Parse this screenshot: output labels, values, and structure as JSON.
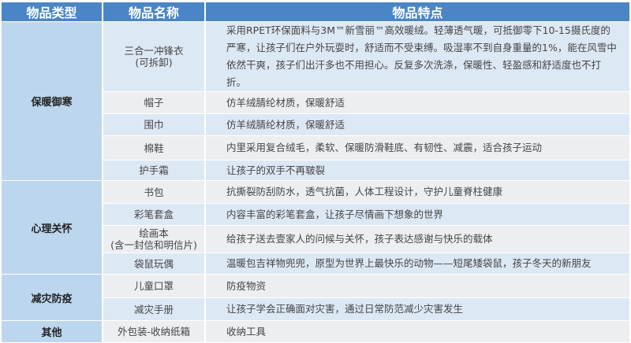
{
  "headers": [
    "物品类型",
    "物品名称",
    "物品特点"
  ],
  "colors": {
    "header": "#4a86c5",
    "category": "#bcd6ee",
    "row_blue": "#dde8f5",
    "row_gray": "#eceef1"
  },
  "categories": [
    "保暖御寒",
    "心理关怀",
    "减灾防疫",
    "其他"
  ],
  "rows": [
    {
      "name": "三合一冲锋衣",
      "name2": "(可拆卸)",
      "desc": "采用RPET环保面料与3M™新雪丽™高效暖绒。轻薄透气暖，可抵御零下10-15摄氏度的严寒，让孩子们在户外玩耍时，舒适而不受束缚。吸湿率不到自身重量的1%，能在风雪中依然干爽，孩子们出汗多也不用担心。反复多次洗涤，保暖性、轻盈感和舒适度也不打折。"
    },
    {
      "name": "帽子",
      "desc": "仿羊绒腈纶材质，保暖舒适"
    },
    {
      "name": "围巾",
      "desc": "仿羊绒腈纶材质，保暖舒适"
    },
    {
      "name": "棉鞋",
      "desc": "内里采用复合绒毛，柔软、保暖防滑鞋底、有韧性、减震，适合孩子运动"
    },
    {
      "name": "护手霜",
      "desc": "让孩子的双手不再皲裂"
    },
    {
      "name": "书包",
      "desc": "抗撕裂防刮防水，透气抗菌，人体工程设计，守护儿童脊柱健康"
    },
    {
      "name": "彩笔套盒",
      "desc": "内容丰富的彩笔套盒，让孩子尽情画下想象的世界"
    },
    {
      "name": "绘画本",
      "name2": "(含一封信和明信片)",
      "desc": "给孩子送去壹家人的问候与关怀，孩子表达感谢与快乐的载体"
    },
    {
      "name": "袋鼠玩偶",
      "desc": "温暖包吉祥物兜兜，原型为世界上最快乐的动物——短尾矮袋鼠，孩子冬天的新朋友"
    },
    {
      "name": "儿童口罩",
      "desc": "防疫物资"
    },
    {
      "name": "减灾手册",
      "desc": "让孩子学会正确面对灾害，通过日常防范减少灾害发生"
    },
    {
      "name": "外包装-收纳纸箱",
      "desc": "收纳工具"
    }
  ]
}
